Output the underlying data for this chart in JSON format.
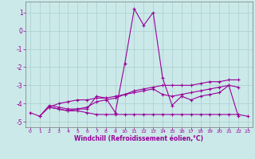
{
  "background_color": "#cbe9e9",
  "grid_color": "#aacfcf",
  "line_color": "#990099",
  "marker_color": "#990099",
  "xlabel": "Windchill (Refroidissement éolien,°C)",
  "xlabel_color": "#990099",
  "tick_color": "#990099",
  "ylim": [
    -5.3,
    1.6
  ],
  "xlim": [
    -0.5,
    23.5
  ],
  "yticks": [
    -5,
    -4,
    -3,
    -2,
    -1,
    0,
    1
  ],
  "xticks": [
    0,
    1,
    2,
    3,
    4,
    5,
    6,
    7,
    8,
    9,
    10,
    11,
    12,
    13,
    14,
    15,
    16,
    17,
    18,
    19,
    20,
    21,
    22,
    23
  ],
  "series": [
    [
      null,
      -4.7,
      -4.1,
      -4.2,
      -4.3,
      -4.3,
      -4.3,
      -3.6,
      -3.7,
      -4.5,
      -1.8,
      1.2,
      0.3,
      1.0,
      -2.6,
      -4.1,
      -3.6,
      -3.8,
      -3.6,
      -3.5,
      -3.4,
      -3.0,
      -3.1,
      null
    ],
    [
      null,
      null,
      -4.2,
      -4.3,
      -4.4,
      -4.4,
      -4.5,
      -4.6,
      -4.6,
      -4.6,
      -4.6,
      -4.6,
      -4.6,
      -4.6,
      -4.6,
      -4.6,
      -4.6,
      -4.6,
      -4.6,
      -4.6,
      -4.6,
      -4.6,
      -4.6,
      -4.7
    ],
    [
      null,
      null,
      -4.2,
      -4.3,
      -4.4,
      -4.3,
      -4.2,
      -3.9,
      -3.8,
      -3.7,
      -3.5,
      -3.3,
      -3.2,
      -3.1,
      -3.0,
      -3.0,
      -3.0,
      -3.0,
      -2.9,
      -2.8,
      -2.8,
      -2.7,
      -2.7,
      null
    ],
    [
      -4.5,
      -4.7,
      -4.2,
      -4.0,
      -3.9,
      -3.8,
      -3.8,
      -3.7,
      -3.7,
      -3.6,
      -3.5,
      -3.4,
      -3.3,
      -3.2,
      -3.5,
      -3.6,
      -3.5,
      -3.4,
      -3.3,
      -3.2,
      -3.1,
      -3.0,
      -4.7,
      null
    ]
  ]
}
